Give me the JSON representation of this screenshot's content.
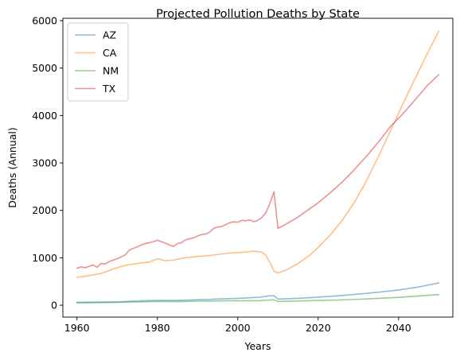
{
  "chart_data": {
    "type": "line",
    "title": "Projected Pollution Deaths by State",
    "xlabel": "Years",
    "ylabel": "Deaths (Annual)",
    "xlim": [
      1956.5,
      2053.5
    ],
    "ylim": [
      -250,
      6050
    ],
    "xticks": [
      1960,
      1980,
      2000,
      2020,
      2040
    ],
    "yticks": [
      0,
      1000,
      2000,
      3000,
      4000,
      5000,
      6000
    ],
    "grid": false,
    "legend": {
      "position": "top-left"
    },
    "series": [
      {
        "name": "AZ",
        "color": "#1f77b4",
        "points": [
          [
            1960,
            60
          ],
          [
            1965,
            65
          ],
          [
            1970,
            70
          ],
          [
            1975,
            90
          ],
          [
            1980,
            100
          ],
          [
            1985,
            100
          ],
          [
            1990,
            115
          ],
          [
            1995,
            130
          ],
          [
            2000,
            145
          ],
          [
            2005,
            165
          ],
          [
            2008,
            200
          ],
          [
            2009,
            200
          ],
          [
            2010,
            130
          ],
          [
            2015,
            145
          ],
          [
            2020,
            170
          ],
          [
            2025,
            200
          ],
          [
            2030,
            235
          ],
          [
            2035,
            275
          ],
          [
            2040,
            320
          ],
          [
            2045,
            385
          ],
          [
            2050,
            470
          ]
        ]
      },
      {
        "name": "CA",
        "color": "#ff7f0e",
        "points": [
          [
            1960,
            590
          ],
          [
            1962,
            610
          ],
          [
            1964,
            640
          ],
          [
            1966,
            670
          ],
          [
            1968,
            730
          ],
          [
            1970,
            790
          ],
          [
            1972,
            840
          ],
          [
            1974,
            870
          ],
          [
            1976,
            890
          ],
          [
            1978,
            910
          ],
          [
            1980,
            980
          ],
          [
            1982,
            940
          ],
          [
            1984,
            950
          ],
          [
            1986,
            990
          ],
          [
            1988,
            1010
          ],
          [
            1990,
            1030
          ],
          [
            1992,
            1040
          ],
          [
            1994,
            1060
          ],
          [
            1996,
            1080
          ],
          [
            1998,
            1100
          ],
          [
            2000,
            1110
          ],
          [
            2002,
            1120
          ],
          [
            2004,
            1140
          ],
          [
            2006,
            1120
          ],
          [
            2007,
            1050
          ],
          [
            2008,
            900
          ],
          [
            2009,
            720
          ],
          [
            2010,
            680
          ],
          [
            2012,
            740
          ],
          [
            2015,
            880
          ],
          [
            2018,
            1060
          ],
          [
            2020,
            1220
          ],
          [
            2023,
            1480
          ],
          [
            2026,
            1790
          ],
          [
            2029,
            2170
          ],
          [
            2032,
            2620
          ],
          [
            2035,
            3140
          ],
          [
            2038,
            3680
          ],
          [
            2041,
            4230
          ],
          [
            2044,
            4760
          ],
          [
            2047,
            5280
          ],
          [
            2050,
            5780
          ]
        ]
      },
      {
        "name": "NM",
        "color": "#2ca02c",
        "points": [
          [
            1960,
            50
          ],
          [
            1965,
            55
          ],
          [
            1970,
            60
          ],
          [
            1975,
            70
          ],
          [
            1980,
            80
          ],
          [
            1985,
            75
          ],
          [
            1990,
            85
          ],
          [
            1995,
            90
          ],
          [
            2000,
            95
          ],
          [
            2005,
            95
          ],
          [
            2008,
            110
          ],
          [
            2009,
            115
          ],
          [
            2010,
            80
          ],
          [
            2015,
            90
          ],
          [
            2020,
            100
          ],
          [
            2025,
            110
          ],
          [
            2030,
            125
          ],
          [
            2035,
            145
          ],
          [
            2040,
            165
          ],
          [
            2045,
            195
          ],
          [
            2050,
            225
          ]
        ]
      },
      {
        "name": "TX",
        "color": "#d62728",
        "points": [
          [
            1960,
            780
          ],
          [
            1961,
            810
          ],
          [
            1962,
            790
          ],
          [
            1963,
            820
          ],
          [
            1964,
            850
          ],
          [
            1965,
            800
          ],
          [
            1966,
            880
          ],
          [
            1967,
            870
          ],
          [
            1968,
            920
          ],
          [
            1969,
            950
          ],
          [
            1970,
            980
          ],
          [
            1971,
            1020
          ],
          [
            1972,
            1060
          ],
          [
            1973,
            1160
          ],
          [
            1974,
            1200
          ],
          [
            1975,
            1230
          ],
          [
            1976,
            1270
          ],
          [
            1977,
            1300
          ],
          [
            1978,
            1320
          ],
          [
            1979,
            1340
          ],
          [
            1980,
            1370
          ],
          [
            1981,
            1340
          ],
          [
            1982,
            1310
          ],
          [
            1983,
            1270
          ],
          [
            1984,
            1240
          ],
          [
            1985,
            1300
          ],
          [
            1986,
            1320
          ],
          [
            1987,
            1380
          ],
          [
            1988,
            1400
          ],
          [
            1989,
            1420
          ],
          [
            1990,
            1460
          ],
          [
            1991,
            1490
          ],
          [
            1992,
            1500
          ],
          [
            1993,
            1540
          ],
          [
            1994,
            1620
          ],
          [
            1995,
            1650
          ],
          [
            1996,
            1660
          ],
          [
            1997,
            1700
          ],
          [
            1998,
            1740
          ],
          [
            1999,
            1760
          ],
          [
            2000,
            1750
          ],
          [
            2001,
            1790
          ],
          [
            2002,
            1780
          ],
          [
            2003,
            1800
          ],
          [
            2004,
            1760
          ],
          [
            2005,
            1790
          ],
          [
            2006,
            1850
          ],
          [
            2007,
            1950
          ],
          [
            2008,
            2150
          ],
          [
            2009,
            2390
          ],
          [
            2010,
            1620
          ],
          [
            2012,
            1710
          ],
          [
            2015,
            1860
          ],
          [
            2018,
            2040
          ],
          [
            2020,
            2160
          ],
          [
            2023,
            2370
          ],
          [
            2026,
            2600
          ],
          [
            2029,
            2860
          ],
          [
            2032,
            3140
          ],
          [
            2035,
            3440
          ],
          [
            2038,
            3770
          ],
          [
            2041,
            4030
          ],
          [
            2044,
            4320
          ],
          [
            2047,
            4620
          ],
          [
            2050,
            4860
          ]
        ]
      }
    ]
  }
}
